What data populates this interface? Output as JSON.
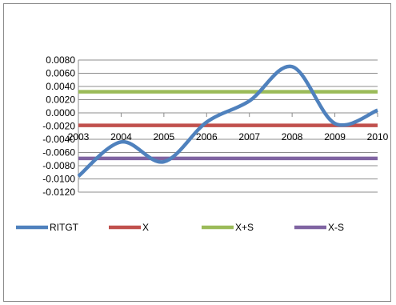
{
  "chart_data": {
    "type": "line",
    "title": "",
    "xlabel": "",
    "ylabel": "",
    "x": [
      "2003",
      "2004",
      "2005",
      "2006",
      "2007",
      "2008",
      "2009",
      "2010"
    ],
    "ylim": [
      -0.012,
      0.008
    ],
    "ytick_step": 0.002,
    "ytick_labels": [
      "0.0080",
      "0.0060",
      "0.0040",
      "0.0020",
      "0.0000",
      "-0.0020",
      "-0.0040",
      "-0.0060",
      "-0.0080",
      "-0.0100",
      "-0.0120"
    ],
    "grid": true,
    "legend_position": "bottom",
    "series": [
      {
        "name": "RITGT",
        "color": "#4f81bd",
        "smooth": true,
        "values": [
          -0.0096,
          -0.0044,
          -0.0074,
          -0.0014,
          0.0018,
          0.007,
          -0.0016,
          0.0004
        ]
      },
      {
        "name": "X",
        "color": "#c0504d",
        "values": [
          -0.0019,
          -0.0019,
          -0.0019,
          -0.0019,
          -0.0019,
          -0.0019,
          -0.0019,
          -0.0019
        ]
      },
      {
        "name": "X+S",
        "color": "#9bbb59",
        "values": [
          0.0032,
          0.0032,
          0.0032,
          0.0032,
          0.0032,
          0.0032,
          0.0032,
          0.0032
        ]
      },
      {
        "name": "X-S",
        "color": "#8064a2",
        "values": [
          -0.0069,
          -0.0069,
          -0.0069,
          -0.0069,
          -0.0069,
          -0.0069,
          -0.0069,
          -0.0069
        ]
      }
    ]
  }
}
